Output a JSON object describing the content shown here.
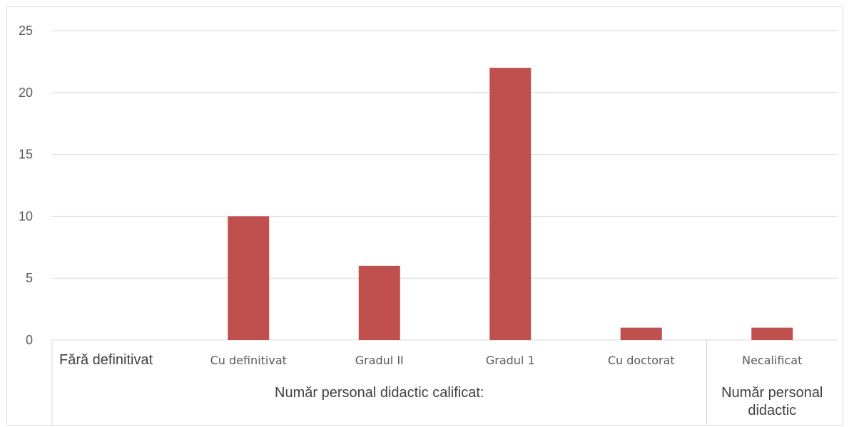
{
  "chart_data": {
    "type": "bar",
    "categories": [
      "Fără definitivat",
      "Cu definitivat",
      "Gradul II",
      "Gradul 1",
      "Cu doctorat",
      "Necalificat"
    ],
    "values": [
      0,
      10,
      6,
      22,
      1,
      1
    ],
    "groups": [
      {
        "label": "Număr personal didactic calificat:",
        "span": 5
      },
      {
        "label_lines": [
          "Număr personal",
          "didactic"
        ],
        "span": 1
      }
    ],
    "yticks": [
      0,
      5,
      10,
      15,
      20,
      25
    ],
    "ylim": [
      0,
      25
    ],
    "grid": true,
    "legend": "none",
    "bar_color": "#c0504d",
    "gridline_color": "#d9d9d9"
  }
}
